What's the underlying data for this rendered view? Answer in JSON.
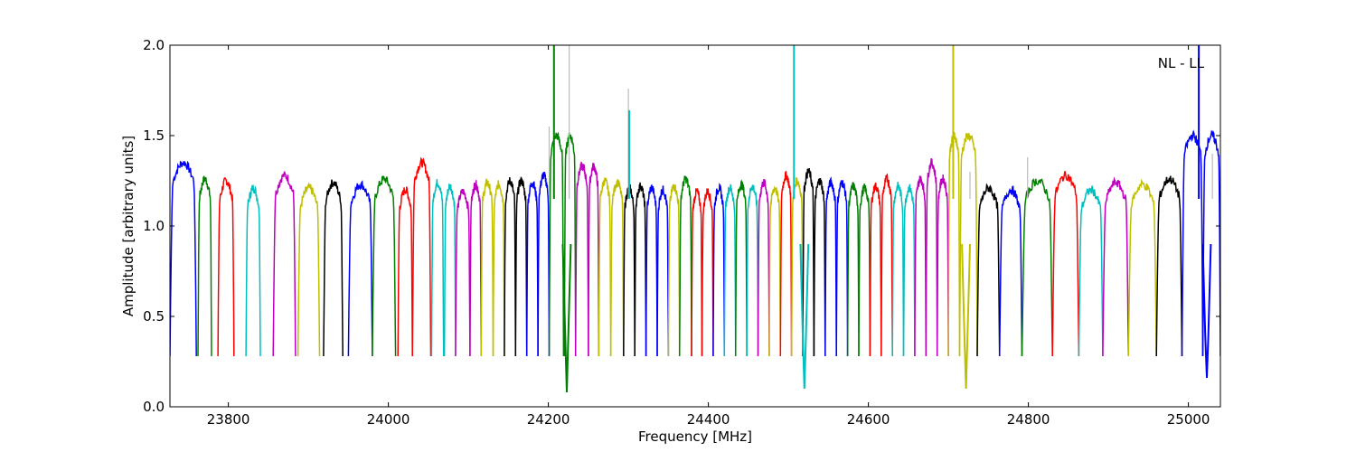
{
  "chart_data": {
    "type": "line",
    "title": "",
    "xlabel": "Frequency [MHz]",
    "ylabel": "Amplitude [arbitrary units]",
    "annotation": "NL - LL",
    "xlim": [
      23727,
      25040
    ],
    "ylim": [
      0.0,
      2.0
    ],
    "xticks": [
      23800,
      24000,
      24200,
      24400,
      24600,
      24800,
      25000
    ],
    "xtick_labels": [
      "23800",
      "24000",
      "24200",
      "24400",
      "24600",
      "24800",
      "25000"
    ],
    "yticks": [
      0.0,
      0.5,
      1.0,
      1.5,
      2.0
    ],
    "ytick_labels": [
      "0.0",
      "0.5",
      "1.0",
      "1.5",
      "2.0"
    ],
    "grid": false,
    "colors": {
      "b": "#0000ff",
      "g": "#008000",
      "r": "#ff0000",
      "c": "#00bfbf",
      "m": "#bf00bf",
      "y": "#bfbf00",
      "k": "#000000",
      "gray": "#bbbbbb"
    },
    "segments": [
      {
        "start": 23727,
        "width": 33,
        "peak": 1.35,
        "color": "b"
      },
      {
        "start": 23762,
        "width": 17,
        "peak": 1.26,
        "color": "g"
      },
      {
        "start": 23787,
        "width": 20,
        "peak": 1.25,
        "color": "r"
      },
      {
        "start": 23822,
        "width": 18,
        "peak": 1.21,
        "color": "c"
      },
      {
        "start": 23856,
        "width": 28,
        "peak": 1.28,
        "color": "m"
      },
      {
        "start": 23887,
        "width": 27,
        "peak": 1.21,
        "color": "y"
      },
      {
        "start": 23919,
        "width": 24,
        "peak": 1.24,
        "color": "k"
      },
      {
        "start": 23950,
        "width": 30,
        "peak": 1.23,
        "color": "b"
      },
      {
        "start": 23980,
        "width": 29,
        "peak": 1.26,
        "color": "g"
      },
      {
        "start": 24012,
        "width": 18,
        "peak": 1.2,
        "color": "r"
      },
      {
        "start": 24030,
        "width": 23,
        "peak": 1.35,
        "color": "r"
      },
      {
        "start": 24054,
        "width": 15,
        "peak": 1.24,
        "color": "c"
      },
      {
        "start": 24070,
        "width": 14,
        "peak": 1.22,
        "color": "c"
      },
      {
        "start": 24084,
        "width": 18,
        "peak": 1.19,
        "color": "m"
      },
      {
        "start": 24102,
        "width": 14,
        "peak": 1.23,
        "color": "m"
      },
      {
        "start": 24116,
        "width": 15,
        "peak": 1.24,
        "color": "y"
      },
      {
        "start": 24131,
        "width": 14,
        "peak": 1.23,
        "color": "y"
      },
      {
        "start": 24145,
        "width": 14,
        "peak": 1.25,
        "color": "k"
      },
      {
        "start": 24159,
        "width": 14,
        "peak": 1.25,
        "color": "k"
      },
      {
        "start": 24173,
        "width": 14,
        "peak": 1.24,
        "color": "b"
      },
      {
        "start": 24187,
        "width": 14,
        "peak": 1.28,
        "color": "b"
      },
      {
        "start": 24201,
        "width": 18,
        "peak": 1.5,
        "color": "g"
      },
      {
        "start": 24220,
        "width": 14,
        "peak": 1.5,
        "color": "g"
      },
      {
        "start": 24234,
        "width": 16,
        "peak": 1.33,
        "color": "m"
      },
      {
        "start": 24250,
        "width": 13,
        "peak": 1.33,
        "color": "m"
      },
      {
        "start": 24263,
        "width": 15,
        "peak": 1.25,
        "color": "y"
      },
      {
        "start": 24278,
        "width": 16,
        "peak": 1.24,
        "color": "y"
      },
      {
        "start": 24294,
        "width": 14,
        "peak": 1.21,
        "color": "k"
      },
      {
        "start": 24308,
        "width": 14,
        "peak": 1.22,
        "color": "k"
      },
      {
        "start": 24322,
        "width": 14,
        "peak": 1.21,
        "color": "b"
      },
      {
        "start": 24336,
        "width": 14,
        "peak": 1.2,
        "color": "b"
      },
      {
        "start": 24350,
        "width": 14,
        "peak": 1.22,
        "color": "y"
      },
      {
        "start": 24364,
        "width": 15,
        "peak": 1.26,
        "color": "g"
      },
      {
        "start": 24379,
        "width": 13,
        "peak": 1.19,
        "color": "r"
      },
      {
        "start": 24392,
        "width": 14,
        "peak": 1.19,
        "color": "r"
      },
      {
        "start": 24406,
        "width": 14,
        "peak": 1.21,
        "color": "b"
      },
      {
        "start": 24420,
        "width": 14,
        "peak": 1.21,
        "color": "c"
      },
      {
        "start": 24434,
        "width": 14,
        "peak": 1.23,
        "color": "g"
      },
      {
        "start": 24448,
        "width": 14,
        "peak": 1.22,
        "color": "c"
      },
      {
        "start": 24462,
        "width": 14,
        "peak": 1.24,
        "color": "m"
      },
      {
        "start": 24476,
        "width": 14,
        "peak": 1.21,
        "color": "y"
      },
      {
        "start": 24490,
        "width": 14,
        "peak": 1.28,
        "color": "r"
      },
      {
        "start": 24504,
        "width": 14,
        "peak": 1.25,
        "color": "y"
      },
      {
        "start": 24518,
        "width": 14,
        "peak": 1.3,
        "color": "k"
      },
      {
        "start": 24532,
        "width": 14,
        "peak": 1.25,
        "color": "k"
      },
      {
        "start": 24546,
        "width": 14,
        "peak": 1.24,
        "color": "b"
      },
      {
        "start": 24560,
        "width": 14,
        "peak": 1.24,
        "color": "b"
      },
      {
        "start": 24574,
        "width": 14,
        "peak": 1.22,
        "color": "g"
      },
      {
        "start": 24588,
        "width": 14,
        "peak": 1.21,
        "color": "g"
      },
      {
        "start": 24602,
        "width": 14,
        "peak": 1.22,
        "color": "r"
      },
      {
        "start": 24616,
        "width": 14,
        "peak": 1.26,
        "color": "r"
      },
      {
        "start": 24630,
        "width": 14,
        "peak": 1.22,
        "color": "c"
      },
      {
        "start": 24644,
        "width": 14,
        "peak": 1.21,
        "color": "c"
      },
      {
        "start": 24658,
        "width": 14,
        "peak": 1.26,
        "color": "m"
      },
      {
        "start": 24672,
        "width": 14,
        "peak": 1.35,
        "color": "m"
      },
      {
        "start": 24686,
        "width": 14,
        "peak": 1.26,
        "color": "m"
      },
      {
        "start": 24700,
        "width": 14,
        "peak": 1.5,
        "color": "y"
      },
      {
        "start": 24714,
        "width": 22,
        "peak": 1.5,
        "color": "y"
      },
      {
        "start": 24736,
        "width": 28,
        "peak": 1.21,
        "color": "k"
      },
      {
        "start": 24764,
        "width": 28,
        "peak": 1.2,
        "color": "b"
      },
      {
        "start": 24792,
        "width": 38,
        "peak": 1.25,
        "color": "g"
      },
      {
        "start": 24830,
        "width": 33,
        "peak": 1.28,
        "color": "r"
      },
      {
        "start": 24863,
        "width": 30,
        "peak": 1.2,
        "color": "c"
      },
      {
        "start": 24893,
        "width": 32,
        "peak": 1.24,
        "color": "m"
      },
      {
        "start": 24925,
        "width": 35,
        "peak": 1.23,
        "color": "y"
      },
      {
        "start": 24960,
        "width": 32,
        "peak": 1.26,
        "color": "k"
      },
      {
        "start": 24992,
        "width": 26,
        "peak": 1.5,
        "color": "b"
      },
      {
        "start": 25018,
        "width": 22,
        "peak": 1.5,
        "color": "b"
      }
    ],
    "dips": [
      {
        "x": 24223,
        "min": 0.08,
        "color": "g"
      },
      {
        "x": 24520,
        "min": 0.1,
        "color": "c"
      },
      {
        "x": 24722,
        "min": 0.1,
        "color": "y"
      },
      {
        "x": 25023,
        "min": 0.16,
        "color": "b"
      }
    ],
    "spikes": [
      {
        "x": 24201,
        "top": 1.55,
        "color": "gray"
      },
      {
        "x": 24207,
        "top": 2.0,
        "color": "g"
      },
      {
        "x": 24226,
        "top": 2.0,
        "color": "gray"
      },
      {
        "x": 24300,
        "top": 1.76,
        "color": "gray"
      },
      {
        "x": 24301,
        "top": 1.64,
        "color": "c"
      },
      {
        "x": 24507,
        "top": 2.0,
        "color": "c"
      },
      {
        "x": 24706,
        "top": 2.0,
        "color": "y"
      },
      {
        "x": 24727,
        "top": 1.3,
        "color": "gray"
      },
      {
        "x": 24799,
        "top": 1.38,
        "color": "gray"
      },
      {
        "x": 25013,
        "top": 2.0,
        "color": "b"
      },
      {
        "x": 25030,
        "top": 1.4,
        "color": "gray"
      }
    ]
  }
}
